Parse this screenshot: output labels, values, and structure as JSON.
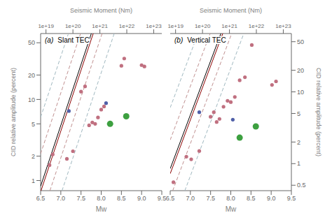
{
  "chart_data": [
    {
      "type": "scatter",
      "annotations": [
        "(a)",
        "Slant TEC"
      ],
      "xlabel": "Mw",
      "ylabel": "CID relative amplitude (percent)",
      "x2label": "Seismic Moment (Nm)",
      "xlim": [
        6.5,
        9.5
      ],
      "xticks": [
        6.5,
        {
          "value": 7.0,
          "label": "7.0"
        },
        7.5,
        {
          "value": 8.0,
          "label": "8.0"
        },
        8.5,
        {
          "value": 9.0,
          "label": "9.0"
        },
        9.5
      ],
      "x2lim": [
        6.5,
        9.5
      ],
      "x2ticks": [
        {
          "value": 6.633,
          "label": "1e+19"
        },
        {
          "value": 7.3,
          "label": "1e+20"
        },
        {
          "value": 7.967,
          "label": "1e+21"
        },
        {
          "value": 8.633,
          "label": "1e+22"
        },
        {
          "value": 9.3,
          "label": "1e+23"
        }
      ],
      "ylim": [
        0.75,
        65
      ],
      "yticks": [
        1,
        2,
        5,
        10,
        20,
        50
      ],
      "log": "y",
      "grid": false,
      "series": [
        {
          "type": "line",
          "line_style": "dashed",
          "color": "#A0B8C0",
          "x": [
            6.5,
            7.18861
          ],
          "values": [
            6.0256,
            65
          ]
        },
        {
          "type": "line",
          "line_style": "dashed",
          "color": "#A0B8C0",
          "x": [
            7.03004,
            8.32194
          ],
          "values": [
            0.75,
            65
          ]
        },
        {
          "type": "line",
          "line_style": "dashed",
          "color": "#C09090",
          "x": [
            6.5,
            7.48861
          ],
          "values": [
            2.13796,
            65
          ]
        },
        {
          "type": "line",
          "line_style": "dashed",
          "color": "#C09090",
          "x": [
            6.73004,
            8.02194
          ],
          "values": [
            0.75,
            65
          ]
        },
        {
          "type": "line",
          "line_style": "solid",
          "color": "#8B0000",
          "x": [
            6.51004,
            7.80194
          ],
          "values": [
            0.75,
            65
          ]
        },
        {
          "type": "line",
          "line_style": "solid",
          "color": "#000000",
          "x": [
            6.5,
            7.75527
          ],
          "values": [
            0.851138,
            65
          ]
        },
        {
          "type": "scatter",
          "marker": "circle",
          "color": "#C07080",
          "x": [
            6.72,
            6.8,
            7.15,
            7.3,
            7.5,
            7.6,
            7.7,
            7.78,
            7.85,
            7.92,
            8.0,
            8.07,
            8.5,
            8.57,
            9.0,
            9.07
          ],
          "values": [
            1.55,
            2.1,
            1.85,
            2.3,
            12.5,
            14.5,
            4.8,
            5.2,
            5.0,
            6.0,
            7.5,
            8.2,
            26.0,
            32.0,
            26.5,
            25.5
          ]
        },
        {
          "type": "scatter",
          "marker": "circle",
          "color": "#5060A8",
          "x": [
            7.2,
            8.12
          ],
          "values": [
            7.2,
            9.0
          ]
        },
        {
          "type": "scatter",
          "marker": "large_circle",
          "color": "#3DA040",
          "x": [
            8.22,
            8.62
          ],
          "values": [
            5.0,
            6.2
          ]
        }
      ]
    },
    {
      "type": "scatter",
      "annotations": [
        "(b)",
        "Vertical TEC"
      ],
      "xlabel": "Mw",
      "ylabel": "CID relative amplitude (percent)",
      "x2label": "Seismic Moment (Nm)",
      "xlim": [
        6.5,
        9.5
      ],
      "xticks": [
        6.5,
        {
          "value": 7.0,
          "label": "7.0"
        },
        7.5,
        {
          "value": 8.0,
          "label": "8.0"
        },
        8.5,
        {
          "value": 9.0,
          "label": "9.0"
        },
        9.5
      ],
      "x2lim": [
        6.5,
        9.5
      ],
      "x2ticks": [
        {
          "value": 6.633,
          "label": "1e+19"
        },
        {
          "value": 7.3,
          "label": "1e+20"
        },
        {
          "value": 7.967,
          "label": "1e+21"
        },
        {
          "value": 8.633,
          "label": "1e+22"
        },
        {
          "value": 9.3,
          "label": "1e+23"
        }
      ],
      "ylim": [
        0.42,
        65
      ],
      "yticks": [
        0.5,
        1,
        2,
        5,
        10,
        20,
        50
      ],
      "log": "y",
      "grid": false,
      "series": [
        {
          "type": "line",
          "line_style": "dashed",
          "color": "#A0B8C0",
          "x": [
            6.5,
            7.18861
          ],
          "values": [
            6.0256,
            65
          ]
        },
        {
          "type": "line",
          "line_style": "dashed",
          "color": "#A0B8C0",
          "x": [
            6.86217,
            8.32194
          ],
          "values": [
            0.42,
            65
          ]
        },
        {
          "type": "line",
          "line_style": "dashed",
          "color": "#C09090",
          "x": [
            6.5,
            7.48861
          ],
          "values": [
            2.13796,
            65
          ]
        },
        {
          "type": "line",
          "line_style": "dashed",
          "color": "#C09090",
          "x": [
            6.56217,
            8.02194
          ],
          "values": [
            0.42,
            65
          ]
        },
        {
          "type": "line",
          "line_style": "solid",
          "color": "#8B0000",
          "x": [
            6.5,
            7.80194
          ],
          "values": [
            0.724436,
            65
          ]
        },
        {
          "type": "line",
          "line_style": "solid",
          "color": "#000000",
          "x": [
            6.5,
            7.75527
          ],
          "values": [
            0.851138,
            65
          ]
        },
        {
          "type": "scatter",
          "marker": "circle",
          "color": "#C07080",
          "x": [
            6.58,
            6.9,
            7.02,
            7.22,
            7.5,
            7.58,
            7.65,
            7.72,
            7.82,
            7.92,
            8.0,
            8.1,
            8.22,
            8.35,
            8.52,
            9.02,
            9.12
          ],
          "values": [
            0.55,
            1.25,
            1.15,
            1.5,
            4.5,
            5.2,
            3.8,
            4.2,
            6.2,
            7.5,
            7.2,
            8.5,
            14.5,
            16.0,
            45.0,
            12.5,
            14.0
          ]
        },
        {
          "type": "scatter",
          "marker": "circle",
          "color": "#5060A8",
          "x": [
            7.22,
            8.05
          ],
          "values": [
            5.2,
            4.1
          ]
        },
        {
          "type": "scatter",
          "marker": "large_circle",
          "color": "#3DA040",
          "x": [
            8.22,
            8.62
          ],
          "values": [
            2.3,
            3.3
          ]
        }
      ]
    }
  ]
}
